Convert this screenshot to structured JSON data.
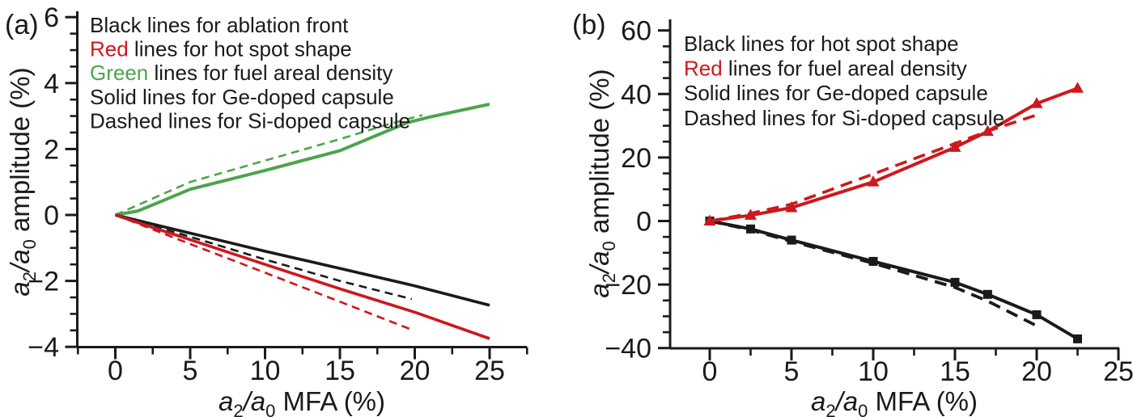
{
  "figure": {
    "background": "#ffffff"
  },
  "colors": {
    "black": "#1a1a1a",
    "red": "#cc181e",
    "green": "#4da44d"
  },
  "chart_data": {
    "type": "line",
    "panels": [
      {
        "panel_label": "(a)",
        "x_axis": {
          "title": "a2/a0 MFA (%)",
          "title_parts": [
            {
              "t": "a",
              "i": true
            },
            {
              "t": "2",
              "sub": true
            },
            {
              "t": "/",
              "i": true
            },
            {
              "t": "a",
              "i": true
            },
            {
              "t": "0",
              "sub": true
            },
            {
              "t": " MFA (%)"
            }
          ],
          "ticks": [
            0,
            5,
            10,
            15,
            20,
            25
          ],
          "minor_ticks": [
            -2.5,
            2.5,
            7.5,
            12.5,
            17.5,
            22.5,
            27.5
          ],
          "range": [
            -2.5,
            27.5
          ]
        },
        "y_axis": {
          "title": "a2/a0 amplitude (%)",
          "title_parts": [
            {
              "t": "a",
              "i": true
            },
            {
              "t": "2",
              "sub": true
            },
            {
              "t": "/",
              "i": true
            },
            {
              "t": "a",
              "i": true
            },
            {
              "t": "0",
              "sub": true
            },
            {
              "t": " amplitude (%)"
            }
          ],
          "ticks": [
            -4,
            -2,
            0,
            2,
            4,
            6
          ],
          "minor_step": 0.5,
          "range": [
            -4,
            6
          ]
        },
        "legend_lines": [
          {
            "lead": "Black",
            "color_key": "black",
            "rest": " lines for ablation front"
          },
          {
            "lead": "Red",
            "color_key": "red",
            "rest": " lines for hot spot shape"
          },
          {
            "lead": "Green",
            "color_key": "green",
            "rest": " lines for fuel areal density"
          },
          {
            "lead": "Solid",
            "color_key": "black",
            "rest": " lines for Ge-doped capsule"
          },
          {
            "lead": "Dashed",
            "color_key": "black",
            "rest": " lines for Si-doped capsule"
          }
        ],
        "series": [
          {
            "id": "fuel-areal-density-si-dashed",
            "label": "fuel areal density, Si-doped",
            "color_key": "green",
            "style": "dashed",
            "width": 2.6,
            "marker": null,
            "points": [
              [
                0,
                0
              ],
              [
                2.5,
                0.5
              ],
              [
                5,
                1.0
              ],
              [
                10,
                1.65
              ],
              [
                15,
                2.3
              ],
              [
                18,
                2.72
              ],
              [
                20.5,
                3.03
              ]
            ]
          },
          {
            "id": "ablation-front-si-dashed",
            "label": "ablation front, Si-doped",
            "color_key": "black",
            "style": "dashed",
            "width": 2.6,
            "marker": null,
            "points": [
              [
                0,
                0
              ],
              [
                2.5,
                -0.33
              ],
              [
                5,
                -0.66
              ],
              [
                10,
                -1.35
              ],
              [
                15,
                -2.0
              ],
              [
                19.8,
                -2.55
              ]
            ]
          },
          {
            "id": "hot-spot-si-dashed",
            "label": "hot spot shape, Si-doped",
            "color_key": "red",
            "style": "dashed",
            "width": 2.6,
            "marker": null,
            "points": [
              [
                0,
                0
              ],
              [
                2.5,
                -0.44
              ],
              [
                5,
                -0.88
              ],
              [
                10,
                -1.75
              ],
              [
                15,
                -2.63
              ],
              [
                19.8,
                -3.48
              ]
            ]
          },
          {
            "id": "fuel-areal-density-ge-solid",
            "label": "fuel areal density, Ge-doped",
            "color_key": "green",
            "style": "solid",
            "width": 4,
            "marker": null,
            "points": [
              [
                0,
                0
              ],
              [
                1.5,
                0.12
              ],
              [
                3,
                0.4
              ],
              [
                5,
                0.78
              ],
              [
                10,
                1.35
              ],
              [
                15,
                1.95
              ],
              [
                19.5,
                2.8
              ],
              [
                21,
                2.97
              ],
              [
                25,
                3.36
              ]
            ]
          },
          {
            "id": "ablation-front-ge-solid",
            "label": "ablation front, Ge-doped",
            "color_key": "black",
            "style": "solid",
            "width": 3.6,
            "marker": null,
            "points": [
              [
                0,
                0
              ],
              [
                2.5,
                -0.28
              ],
              [
                5,
                -0.55
              ],
              [
                10,
                -1.1
              ],
              [
                15,
                -1.62
              ],
              [
                20,
                -2.15
              ],
              [
                25,
                -2.74
              ]
            ]
          },
          {
            "id": "hot-spot-ge-solid",
            "label": "hot spot shape, Ge-doped",
            "color_key": "red",
            "style": "solid",
            "width": 3.6,
            "marker": null,
            "points": [
              [
                0,
                0
              ],
              [
                2.5,
                -0.38
              ],
              [
                5,
                -0.75
              ],
              [
                10,
                -1.5
              ],
              [
                15,
                -2.24
              ],
              [
                20,
                -2.95
              ],
              [
                25,
                -3.75
              ]
            ]
          }
        ]
      },
      {
        "panel_label": "(b)",
        "x_axis": {
          "title": "a2/a0 MFA (%)",
          "title_parts": [
            {
              "t": "a",
              "i": true
            },
            {
              "t": "2",
              "sub": true
            },
            {
              "t": "/",
              "i": true
            },
            {
              "t": "a",
              "i": true
            },
            {
              "t": "0",
              "sub": true
            },
            {
              "t": " MFA (%)"
            }
          ],
          "ticks": [
            0,
            5,
            10,
            15,
            20,
            25
          ],
          "minor_ticks": [
            2.5,
            7.5,
            12.5,
            17.5,
            22.5
          ],
          "range": [
            -2.5,
            25
          ]
        },
        "y_axis": {
          "title": "a2/a0 amplitude (%)",
          "title_parts": [
            {
              "t": "a",
              "i": true
            },
            {
              "t": "2",
              "sub": true
            },
            {
              "t": "/",
              "i": true
            },
            {
              "t": "a",
              "i": true
            },
            {
              "t": "0",
              "sub": true
            },
            {
              "t": " amplitude (%)"
            }
          ],
          "ticks": [
            -40,
            -20,
            0,
            20,
            40,
            60
          ],
          "minor_step": 5,
          "range": [
            -40,
            60
          ]
        },
        "legend_lines": [
          {
            "lead": "Black",
            "color_key": "black",
            "rest": " lines for hot spot shape"
          },
          {
            "lead": "Red",
            "color_key": "red",
            "rest": " lines for fuel areal density"
          },
          {
            "lead": "Solid",
            "color_key": "black",
            "rest": " lines for Ge-doped capsule"
          },
          {
            "lead": "Dashed",
            "color_key": "black",
            "rest": " lines for Si-doped capsule"
          }
        ],
        "series": [
          {
            "id": "hot-spot-si-dashed",
            "label": "hot spot shape, Si-doped",
            "color_key": "black",
            "style": "dashed",
            "width": 3.8,
            "marker": null,
            "points": [
              [
                0,
                0
              ],
              [
                2.5,
                -2.8
              ],
              [
                5,
                -6.4
              ],
              [
                10,
                -13.3
              ],
              [
                15,
                -20.9
              ],
              [
                17,
                -25.2
              ],
              [
                20,
                -33.0
              ]
            ]
          },
          {
            "id": "fuel-areal-density-si-dashed",
            "label": "fuel areal density, Si-doped",
            "color_key": "red",
            "style": "dashed",
            "width": 3.6,
            "marker": null,
            "points": [
              [
                0,
                0
              ],
              [
                2.5,
                2.4
              ],
              [
                5,
                5.3
              ],
              [
                10,
                14.8
              ],
              [
                15,
                24.4
              ],
              [
                17,
                28.3
              ],
              [
                20,
                33.4
              ]
            ]
          },
          {
            "id": "hot-spot-ge-solid",
            "label": "hot spot shape, Ge-doped",
            "color_key": "black",
            "style": "solid",
            "width": 4,
            "marker": "square",
            "points": [
              [
                0,
                0
              ],
              [
                2.5,
                -2.5
              ],
              [
                5,
                -6.0
              ],
              [
                10,
                -12.7
              ],
              [
                15,
                -19.3
              ],
              [
                17,
                -23.1
              ],
              [
                20,
                -29.5
              ],
              [
                22.5,
                -37.1
              ]
            ]
          },
          {
            "id": "fuel-areal-density-ge-solid",
            "label": "fuel areal density, Ge-doped",
            "color_key": "red",
            "style": "solid",
            "width": 4,
            "marker": "triangle",
            "points": [
              [
                0,
                0
              ],
              [
                2.5,
                1.8
              ],
              [
                5,
                4.2
              ],
              [
                10,
                12.3
              ],
              [
                15,
                23.2
              ],
              [
                17,
                28.2
              ],
              [
                20,
                37.0
              ],
              [
                22.5,
                41.8
              ]
            ]
          }
        ]
      }
    ]
  }
}
